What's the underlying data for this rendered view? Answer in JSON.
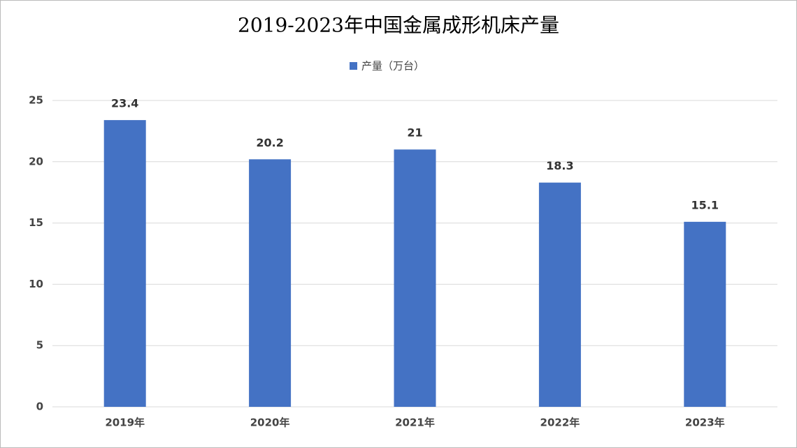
{
  "chart_data": {
    "type": "bar",
    "title": "2019-2023年中国金属成形机床产量",
    "legend": "产量（万台）",
    "categories": [
      "2019年",
      "2020年",
      "2021年",
      "2022年",
      "2023年"
    ],
    "values": [
      23.4,
      20.2,
      21,
      18.3,
      15.1
    ],
    "color": "#4472c4",
    "ylim": [
      0,
      25
    ],
    "yticks": [
      0,
      5,
      10,
      15,
      20,
      25
    ],
    "grid": true
  }
}
